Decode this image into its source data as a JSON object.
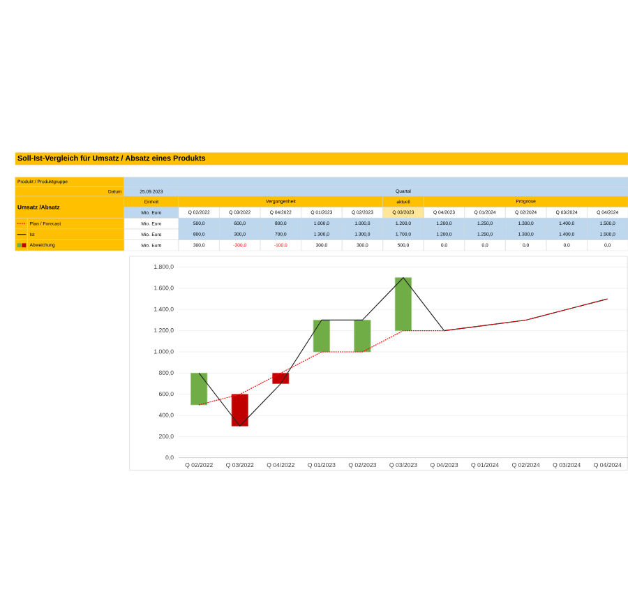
{
  "chart_data": {
    "type": "bar",
    "title": "Soll-Ist-Vergleich für Umsatz / Absatz eines Produkts",
    "annotations": [
      "Produkt / Produktgruppe",
      "Datum",
      "25.09.2023",
      "Umsatz /Absatz",
      "Einheit",
      "Mio. Euro",
      "Quartal",
      "Vergangenheit",
      "aktuell",
      "Prognose"
    ],
    "categories": [
      "Q 02/2022",
      "Q 03/2022",
      "Q 04/2022",
      "Q 01/2023",
      "Q 02/2023",
      "Q 03/2023",
      "Q 04/2023",
      "Q 01/2024",
      "Q 02/2024",
      "Q 03/2024",
      "Q 04/2024"
    ],
    "series": [
      {
        "name": "Abweichung",
        "values": [
          300,
          -300,
          -100,
          300,
          300,
          500,
          0,
          0,
          0,
          0,
          0
        ],
        "base": [
          500,
          600,
          800,
          1000,
          1000,
          1200,
          null,
          null,
          null,
          null,
          null
        ],
        "colors": [
          "#70ad47",
          "#c00000",
          "#c00000",
          "#70ad47",
          "#70ad47",
          "#70ad47",
          "#70ad47",
          "#70ad47",
          "#70ad47",
          "#70ad47",
          "#70ad47"
        ],
        "value_labels": [
          "300,0",
          "-300,0",
          "-100,0",
          "300,0",
          "300,0",
          "500,0",
          "0,0",
          "0,0",
          "0,0",
          "0,0",
          "0,0"
        ]
      },
      {
        "name": "Ist",
        "type": "line",
        "color": "#262626",
        "line_style": "solid",
        "values": [
          800,
          300,
          700,
          1300,
          1300,
          1700,
          1200,
          1250,
          1300,
          1400,
          1500
        ],
        "value_labels": [
          "800,0",
          "300,0",
          "700,0",
          "1.300,0",
          "1.300,0",
          "1.700,0",
          "1.200,0",
          "1.250,0",
          "1.300,0",
          "1.400,0",
          "1.500,0"
        ]
      },
      {
        "name": "Plan / Forecast",
        "type": "line",
        "color": "#ff0000",
        "line_style": "dotted",
        "values": [
          500,
          600,
          800,
          1000,
          1000,
          1200,
          1200,
          1250,
          1300,
          1400,
          1500
        ],
        "value_labels": [
          "500,0",
          "600,0",
          "800,0",
          "1.000,0",
          "1.000,0",
          "1.200,0",
          "1.200,0",
          "1.250,0",
          "1.300,0",
          "1.400,0",
          "1.500,0"
        ]
      }
    ],
    "ylim": [
      0,
      1800
    ],
    "yticks": [
      {
        "value": 0,
        "label": "0,0"
      },
      {
        "value": 200,
        "label": "200,0"
      },
      {
        "value": 400,
        "label": "400,0"
      },
      {
        "value": 600,
        "label": "600,0"
      },
      {
        "value": 800,
        "label": "800,0"
      },
      {
        "value": 1000,
        "label": "1.000,0"
      },
      {
        "value": 1200,
        "label": "1.200,0"
      },
      {
        "value": 1400,
        "label": "1.400,0"
      },
      {
        "value": 1600,
        "label": "1.600,0"
      },
      {
        "value": 1800,
        "label": "1.800,0"
      }
    ],
    "grid": "y",
    "legend": "left"
  }
}
